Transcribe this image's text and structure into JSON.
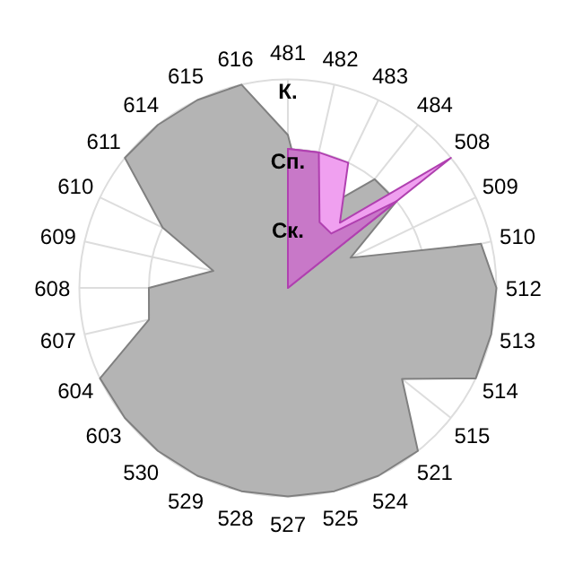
{
  "chart_data": {
    "type": "radar",
    "categories": [
      "481",
      "482",
      "483",
      "484",
      "508",
      "509",
      "510",
      "512",
      "513",
      "514",
      "515",
      "521",
      "524",
      "525",
      "527",
      "528",
      "529",
      "530",
      "603",
      "604",
      "607",
      "608",
      "609",
      "610",
      "611",
      "614",
      "615",
      "616"
    ],
    "ylim": [
      0,
      3
    ],
    "yticks": [
      {
        "value": 1,
        "label": "Ск."
      },
      {
        "value": 2,
        "label": "Сп."
      },
      {
        "value": 3,
        "label": "К."
      }
    ],
    "grid": true,
    "series": [
      {
        "color": "#b4b4b4",
        "values": [
          2.2,
          1.2,
          1.3,
          2.0,
          2.0,
          1.0,
          2.85,
          3,
          3,
          3,
          2.1,
          3,
          3,
          3,
          3,
          3,
          3,
          3,
          3,
          3,
          2.05,
          2.0,
          1.1,
          2.0,
          3,
          3,
          3,
          3
        ]
      },
      {
        "color": "#f0a0f0",
        "values": [
          2.0,
          2.0,
          2.0,
          1.2,
          3.0,
          0,
          0,
          0,
          0,
          0,
          0,
          0,
          0,
          0,
          0,
          0,
          0,
          0,
          0,
          0,
          0,
          0,
          0,
          0,
          0,
          0,
          0,
          0
        ]
      },
      {
        "color": "#c878c8",
        "values": [
          2.0,
          2.0,
          1.05,
          1.0,
          2.0,
          0,
          0,
          0,
          0,
          0,
          0,
          0,
          0,
          0,
          0,
          0,
          0,
          0,
          0,
          0,
          0,
          0,
          0,
          0,
          0,
          0,
          0,
          0
        ]
      }
    ]
  }
}
